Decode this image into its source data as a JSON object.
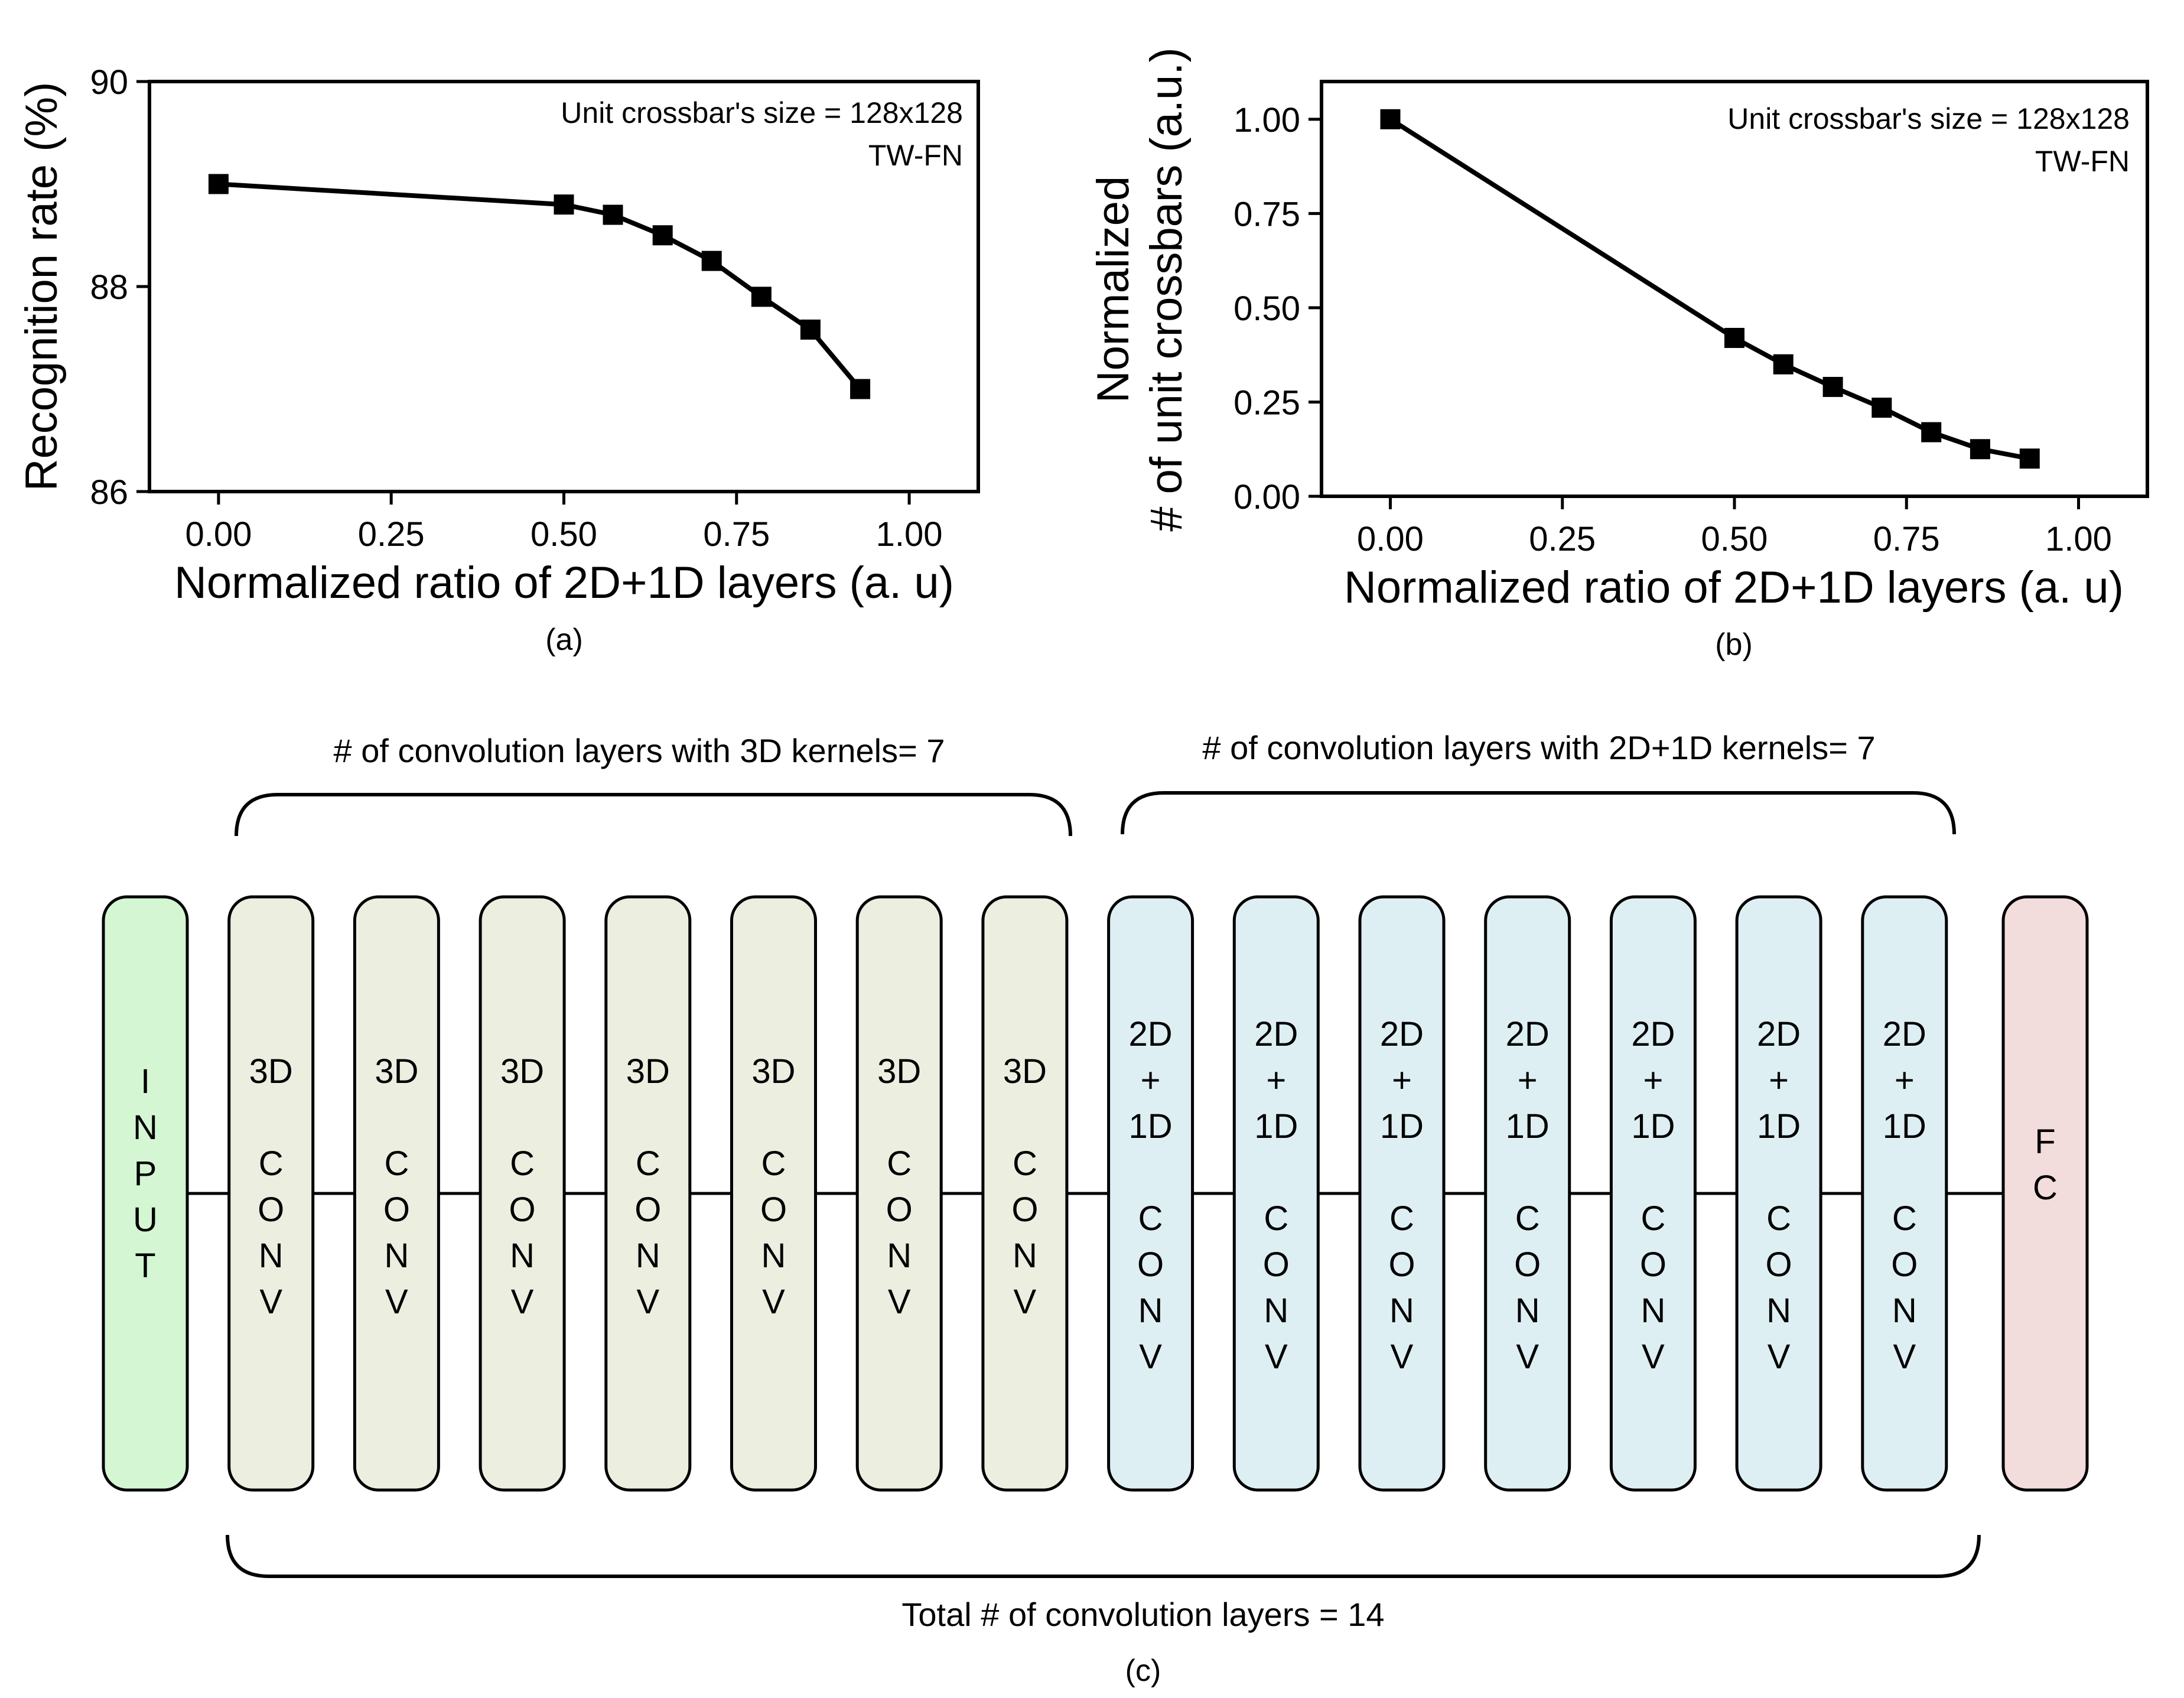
{
  "chart_data": [
    {
      "id": "a",
      "type": "line",
      "panel_label": "(a)",
      "xlabel": "Normalized ratio of 2D+1D layers (a. u)",
      "ylabel": "Recognition rate (%)",
      "xlim": [
        -0.1,
        1.1
      ],
      "ylim": [
        86,
        90
      ],
      "xticks": [
        "0.00",
        "0.25",
        "0.50",
        "0.75",
        "1.00"
      ],
      "xtick_values": [
        0,
        0.25,
        0.5,
        0.75,
        1.0
      ],
      "yticks": [
        "86",
        "88",
        "90"
      ],
      "ytick_values": [
        86,
        88,
        90
      ],
      "annotation": [
        "Unit crossbar's size = 128x128",
        "TW-FN"
      ],
      "x": [
        0.0,
        0.5,
        0.571,
        0.643,
        0.714,
        0.786,
        0.857,
        0.929
      ],
      "y": [
        89.0,
        88.8,
        88.7,
        88.5,
        88.25,
        87.9,
        87.58,
        87.0
      ],
      "marker": "square",
      "grid": false
    },
    {
      "id": "b",
      "type": "line",
      "panel_label": "(b)",
      "xlabel": "Normalized ratio of 2D+1D layers (a. u)",
      "ylabel": [
        "Normalized",
        "# of unit crossbars (a.u.)"
      ],
      "xlim": [
        -0.1,
        1.1
      ],
      "ylim": [
        0.0,
        1.1
      ],
      "xticks": [
        "0.00",
        "0.25",
        "0.50",
        "0.75",
        "1.00"
      ],
      "xtick_values": [
        0,
        0.25,
        0.5,
        0.75,
        1.0
      ],
      "yticks": [
        "0.00",
        "0.25",
        "0.50",
        "0.75",
        "1.00"
      ],
      "ytick_values": [
        0,
        0.25,
        0.5,
        0.75,
        1.0
      ],
      "annotation": [
        "Unit crossbar's size = 128x128",
        "TW-FN"
      ],
      "x": [
        0.0,
        0.5,
        0.571,
        0.643,
        0.714,
        0.786,
        0.857,
        0.929
      ],
      "y": [
        1.0,
        0.42,
        0.35,
        0.29,
        0.235,
        0.17,
        0.125,
        0.1
      ],
      "marker": "square",
      "grid": false
    }
  ],
  "diagram": {
    "panel_label": "(c)",
    "brace_3d_label": "# of convolution layers with 3D kernels= 7",
    "brace_2d1d_label": "# of convolution layers with 2D+1D kernels= 7",
    "total_label": "Total # of convolution layers = 14",
    "colors": {
      "input": "#d4f6d3",
      "conv3d": "#eceee0",
      "conv2d1d": "#ddeff3",
      "fc": "#f3dcdc"
    },
    "blocks": [
      {
        "kind": "input",
        "lines": [
          "I",
          "N",
          "P",
          "U",
          "T"
        ]
      },
      {
        "kind": "conv3d",
        "lines": [
          "3D",
          "",
          "C",
          "O",
          "N",
          "V"
        ]
      },
      {
        "kind": "conv3d",
        "lines": [
          "3D",
          "",
          "C",
          "O",
          "N",
          "V"
        ]
      },
      {
        "kind": "conv3d",
        "lines": [
          "3D",
          "",
          "C",
          "O",
          "N",
          "V"
        ]
      },
      {
        "kind": "conv3d",
        "lines": [
          "3D",
          "",
          "C",
          "O",
          "N",
          "V"
        ]
      },
      {
        "kind": "conv3d",
        "lines": [
          "3D",
          "",
          "C",
          "O",
          "N",
          "V"
        ]
      },
      {
        "kind": "conv3d",
        "lines": [
          "3D",
          "",
          "C",
          "O",
          "N",
          "V"
        ]
      },
      {
        "kind": "conv3d",
        "lines": [
          "3D",
          "",
          "C",
          "O",
          "N",
          "V"
        ]
      },
      {
        "kind": "conv2d1d",
        "lines": [
          "2D",
          "+",
          "1D",
          "",
          "C",
          "O",
          "N",
          "V"
        ]
      },
      {
        "kind": "conv2d1d",
        "lines": [
          "2D",
          "+",
          "1D",
          "",
          "C",
          "O",
          "N",
          "V"
        ]
      },
      {
        "kind": "conv2d1d",
        "lines": [
          "2D",
          "+",
          "1D",
          "",
          "C",
          "O",
          "N",
          "V"
        ]
      },
      {
        "kind": "conv2d1d",
        "lines": [
          "2D",
          "+",
          "1D",
          "",
          "C",
          "O",
          "N",
          "V"
        ]
      },
      {
        "kind": "conv2d1d",
        "lines": [
          "2D",
          "+",
          "1D",
          "",
          "C",
          "O",
          "N",
          "V"
        ]
      },
      {
        "kind": "conv2d1d",
        "lines": [
          "2D",
          "+",
          "1D",
          "",
          "C",
          "O",
          "N",
          "V"
        ]
      },
      {
        "kind": "conv2d1d",
        "lines": [
          "2D",
          "+",
          "1D",
          "",
          "C",
          "O",
          "N",
          "V"
        ]
      },
      {
        "kind": "fc",
        "lines": [
          "F",
          "C"
        ]
      }
    ]
  }
}
